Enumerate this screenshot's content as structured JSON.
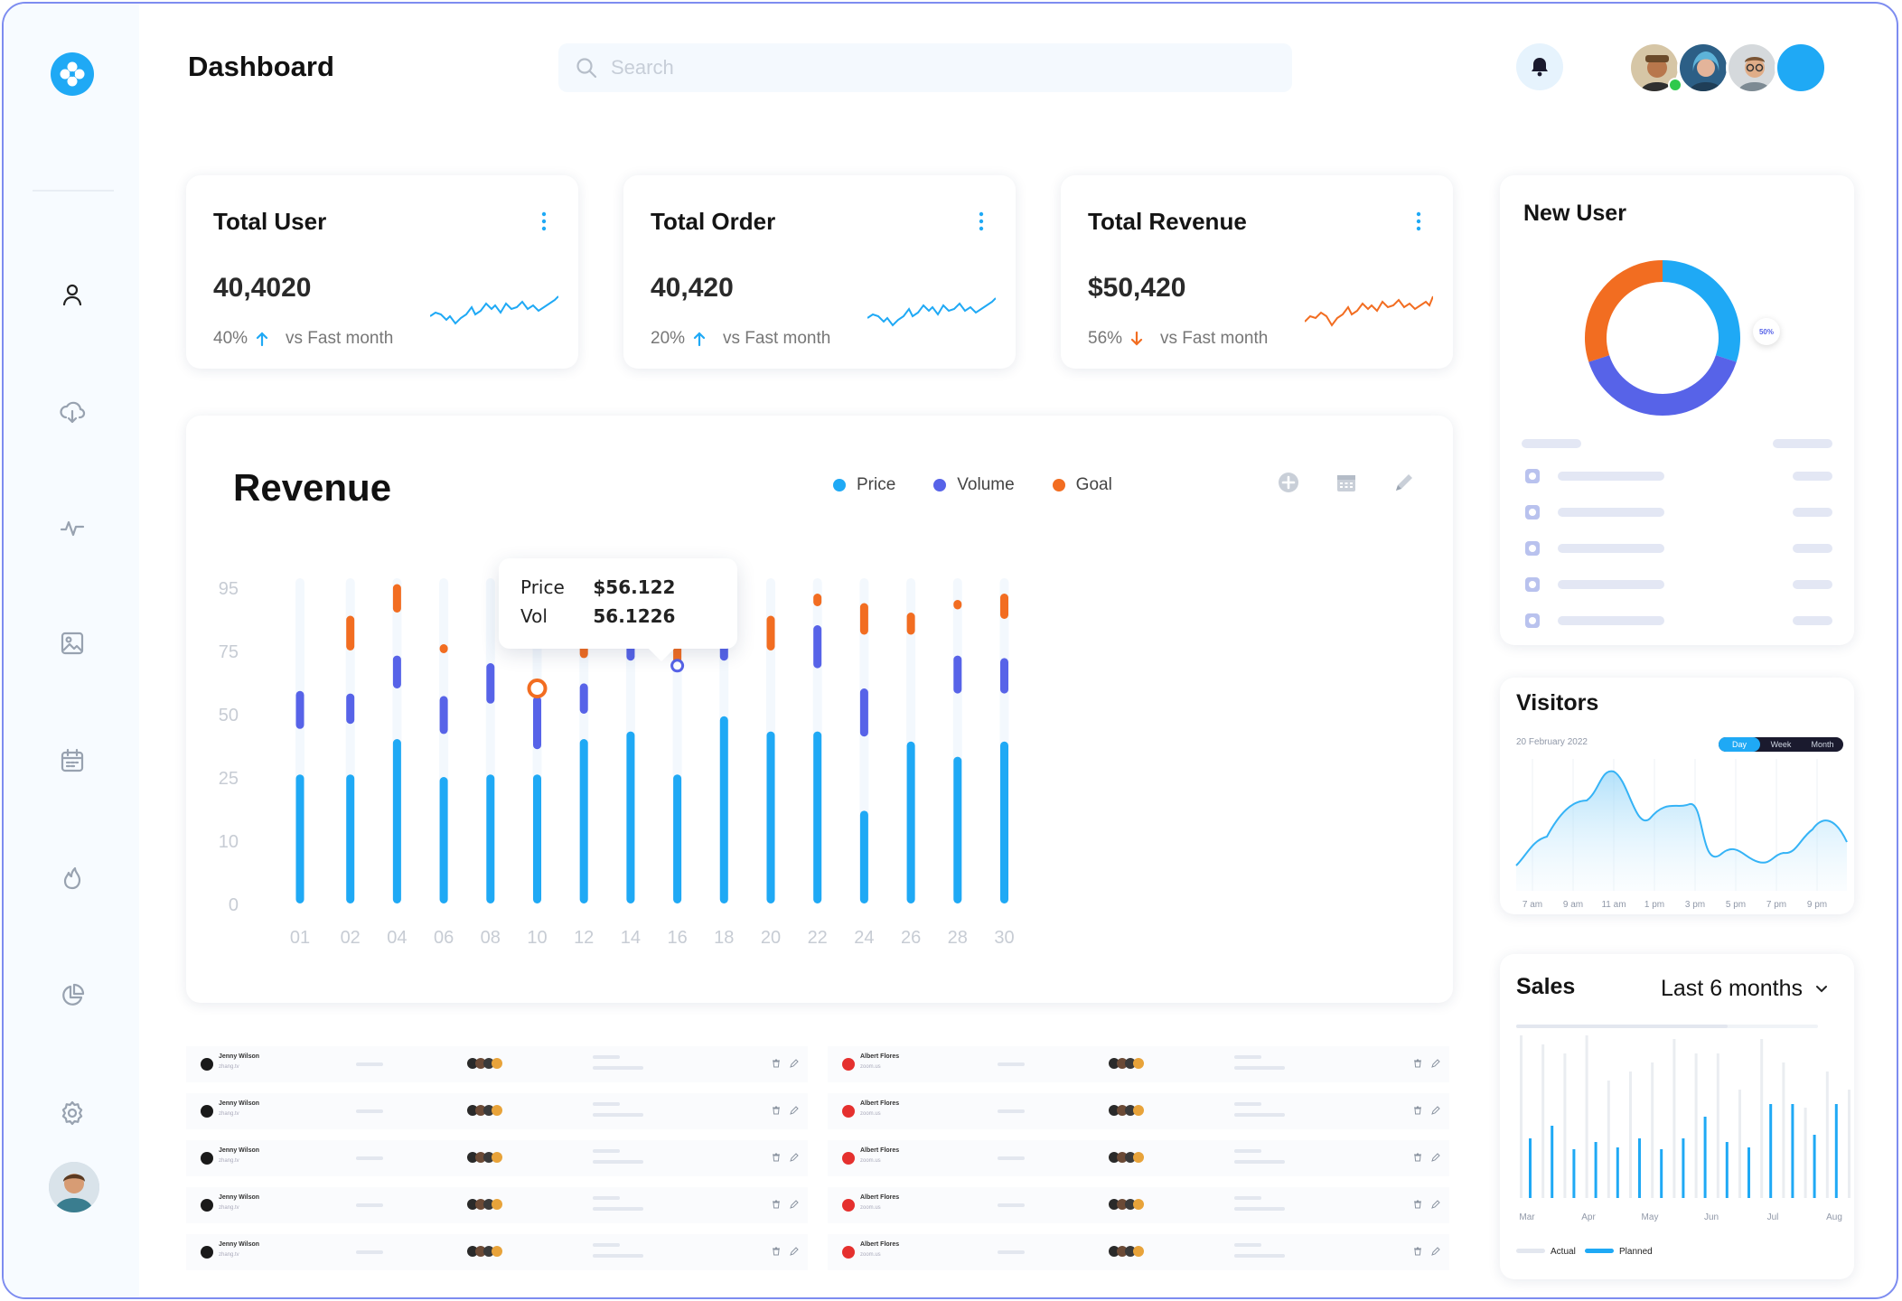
{
  "header": {
    "title": "Dashboard",
    "search_placeholder": "Search"
  },
  "sidebar": {
    "items": [
      {
        "icon": "user-icon"
      },
      {
        "icon": "cloud-download-icon"
      },
      {
        "icon": "activity-icon"
      },
      {
        "icon": "image-icon"
      },
      {
        "icon": "calendar-icon"
      },
      {
        "icon": "fire-icon"
      },
      {
        "icon": "pie-chart-icon"
      },
      {
        "icon": "gear-icon"
      }
    ]
  },
  "stats": [
    {
      "title": "Total User",
      "value": "40,4020",
      "percent": "40%",
      "trend": "up",
      "compare": "vs Fast month",
      "spark_color": "#1fa9f5"
    },
    {
      "title": "Total Order",
      "value": "40,420",
      "percent": "20%",
      "trend": "up",
      "compare": "vs Fast month",
      "spark_color": "#1fa9f5"
    },
    {
      "title": "Total Revenue",
      "value": "$50,420",
      "percent": "56%",
      "trend": "down",
      "compare": "vs Fast month",
      "spark_color": "#f26d21"
    }
  ],
  "revenue": {
    "title": "Revenue",
    "legend": [
      {
        "label": "Price",
        "color": "#1fa9f5"
      },
      {
        "label": "Volume",
        "color": "#5763e8"
      },
      {
        "label": "Goal",
        "color": "#f26d21"
      }
    ],
    "tooltip": {
      "price_label": "Price",
      "price_value": "$56.122",
      "vol_label": "Vol",
      "vol_value": "56.1226"
    }
  },
  "chart_data": {
    "type": "bar",
    "title": "Revenue",
    "categories": [
      "01",
      "02",
      "04",
      "06",
      "08",
      "10",
      "12",
      "14",
      "16",
      "18",
      "20",
      "22",
      "24",
      "26",
      "28",
      "30"
    ],
    "y_tick_labels": [
      "95",
      "75",
      "50",
      "25",
      "10",
      "0"
    ],
    "series": [
      {
        "name": "Price",
        "values": [
          26,
          26,
          40,
          25,
          26,
          26,
          40,
          43,
          26,
          49,
          43,
          43,
          17,
          39,
          33,
          39
        ]
      },
      {
        "name": "Volume",
        "ranges": [
          [
            44,
            59
          ],
          [
            46,
            58
          ],
          [
            60,
            73
          ],
          [
            42,
            57
          ],
          [
            54,
            70
          ],
          [
            36,
            57
          ],
          [
            50,
            62
          ],
          [
            71,
            84
          ],
          [
            68,
            70
          ],
          [
            71,
            84
          ],
          [
            null,
            null
          ],
          [
            68,
            83
          ],
          [
            41,
            60
          ],
          [
            null,
            null
          ],
          [
            58,
            73
          ],
          [
            58,
            72
          ]
        ]
      },
      {
        "name": "Goal",
        "ranges": [
          [
            null,
            null
          ],
          [
            75,
            86
          ],
          [
            87,
            96
          ],
          [
            75,
            77
          ],
          [
            null,
            null
          ],
          [
            59,
            60
          ],
          [
            72,
            81
          ],
          [
            null,
            null
          ],
          [
            68,
            93
          ],
          [
            null,
            null
          ],
          [
            75,
            86
          ],
          [
            89,
            93
          ],
          [
            80,
            90
          ],
          [
            80,
            87
          ],
          [
            88,
            91
          ],
          [
            85,
            93
          ]
        ]
      }
    ]
  },
  "new_user": {
    "title": "New User",
    "donut_label": "50%",
    "donut": [
      {
        "name": "segment-blue",
        "value": 30,
        "color": "#1fa9f5"
      },
      {
        "name": "segment-indigo",
        "value": 40,
        "color": "#5763e8"
      },
      {
        "name": "segment-orange",
        "value": 30,
        "color": "#f26d21"
      }
    ]
  },
  "visitors": {
    "title": "Visitors",
    "date": "20 February 2022",
    "tabs": [
      "Day",
      "Week",
      "Month"
    ],
    "active_tab": "Day",
    "x_labels": [
      "7 am",
      "9 am",
      "11 am",
      "1 pm",
      "3 pm",
      "5 pm",
      "7 pm",
      "9 pm"
    ]
  },
  "sales": {
    "title": "Sales",
    "period": "Last 6 months",
    "months": [
      "Mar",
      "Apr",
      "May",
      "Jun",
      "Jul",
      "Aug"
    ],
    "legend_actual": "Actual",
    "legend_planned": "Planned"
  },
  "tables": {
    "left_rows": [
      {
        "name": "Jenny Wilson",
        "sub": "zhang.tv"
      },
      {
        "name": "Jenny Wilson",
        "sub": "zhang.tv"
      },
      {
        "name": "Jenny Wilson",
        "sub": "zhang.tv"
      },
      {
        "name": "Jenny Wilson",
        "sub": "zhang.tv"
      },
      {
        "name": "Jenny Wilson",
        "sub": "zhang.tv"
      }
    ],
    "right_rows": [
      {
        "name": "Albert Flores",
        "sub": "zoom.us"
      },
      {
        "name": "Albert Flores",
        "sub": "zoom.us"
      },
      {
        "name": "Albert Flores",
        "sub": "zoom.us"
      },
      {
        "name": "Albert Flores",
        "sub": "zoom.us"
      },
      {
        "name": "Albert Flores",
        "sub": "zoom.us"
      }
    ]
  }
}
